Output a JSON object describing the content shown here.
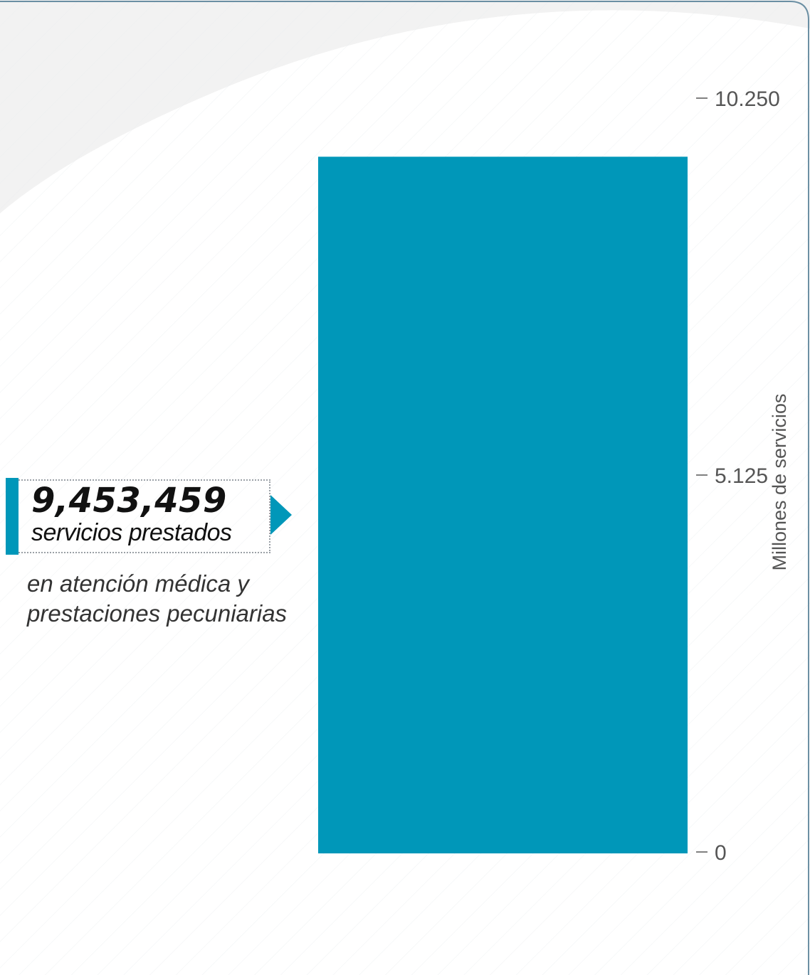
{
  "colors": {
    "bar": "#0097b9",
    "accent": "#0097b9",
    "text": "#111111",
    "axis_text": "#555555",
    "background": "#ffffff",
    "curve": "#f2f2f2",
    "stripes": "#e9ecef",
    "frame": "#6b8fa3"
  },
  "callout": {
    "value": "9,453,459",
    "label": "servicios prestados",
    "description_line1": "en atención médica y",
    "description_line2": "prestaciones pecuniarias"
  },
  "chart_data": {
    "type": "bar",
    "categories": [
      ""
    ],
    "values": [
      9453459
    ],
    "ylabel": "Millones de servicios",
    "ylim": [
      0,
      10250000
    ],
    "yticks": [
      {
        "value": 0,
        "label": "0"
      },
      {
        "value": 5125000,
        "label": "5.125"
      },
      {
        "value": 10250000,
        "label": "10.250"
      }
    ],
    "axis_position": "right",
    "grid": false,
    "legend": "none"
  }
}
